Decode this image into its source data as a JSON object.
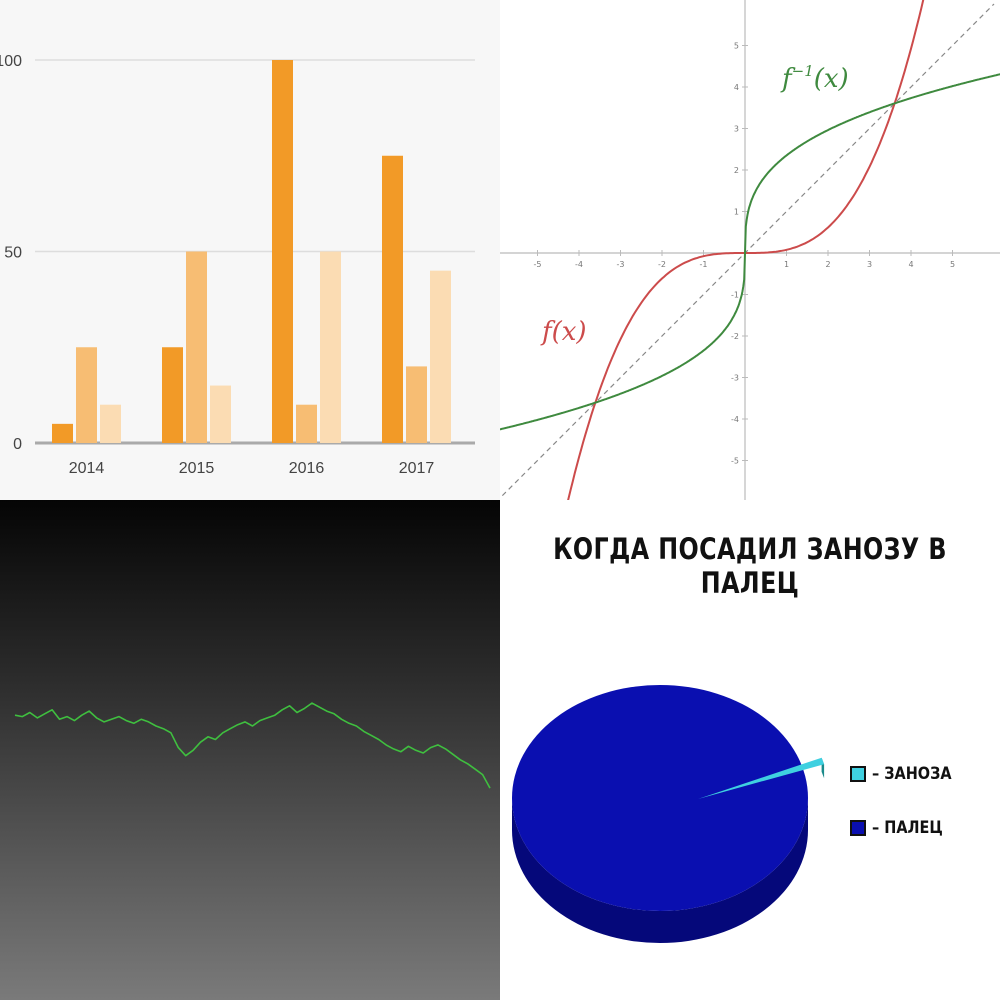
{
  "chart_data": [
    {
      "type": "bar",
      "title": "",
      "xlabel": "",
      "ylabel": "",
      "categories": [
        "2014",
        "2015",
        "2016",
        "2017"
      ],
      "series": [
        {
          "values": [
            5,
            25,
            100,
            75
          ],
          "color": "#f29a27"
        },
        {
          "values": [
            25,
            50,
            10,
            20
          ],
          "color": "#f7bd73"
        },
        {
          "values": [
            10,
            15,
            50,
            45
          ],
          "color": "#fbdcb3"
        }
      ],
      "yticks": [
        "0",
        "50",
        "100"
      ],
      "ylim": [
        0,
        100
      ],
      "grid": true
    },
    {
      "type": "line",
      "title": "",
      "xlim": [
        -6,
        6
      ],
      "ylim": [
        -6,
        6
      ],
      "xticks": [
        -5,
        -4,
        -3,
        -2,
        -1,
        1,
        2,
        3,
        4,
        5
      ],
      "yticks": [
        -5,
        -4,
        -3,
        -2,
        -1,
        1,
        2,
        3,
        4,
        5
      ],
      "grid": false,
      "series": [
        {
          "name": "f(x)",
          "function": "x^3/13",
          "color": "#cc4b4b"
        },
        {
          "name": "f^{-1}(x)",
          "function": "cbrt(13x)",
          "color": "#3f8a3f"
        },
        {
          "function": "y = x",
          "style": "dashed",
          "color": "#888888"
        }
      ],
      "labels": {
        "f": "f(x)",
        "finv_base": "f",
        "finv_sup": "−1",
        "finv_arg": "(x)"
      }
    },
    {
      "type": "line",
      "title": "",
      "color": "#3fbf3f",
      "series": [
        {
          "values": [
            48,
            47,
            50,
            46,
            49,
            52,
            45,
            47,
            44,
            48,
            51,
            46,
            43,
            45,
            47,
            44,
            42,
            45,
            43,
            40,
            38,
            35,
            24,
            18,
            22,
            28,
            32,
            30,
            35,
            38,
            41,
            43,
            40,
            44,
            46,
            48,
            52,
            55,
            50,
            53,
            57,
            54,
            51,
            49,
            45,
            42,
            40,
            36,
            33,
            30,
            26,
            23,
            21,
            25,
            22,
            20,
            24,
            26,
            23,
            19,
            15,
            12,
            8,
            4,
            -6
          ]
        }
      ]
    },
    {
      "type": "pie",
      "title": "КОГДА ПОСАДИЛ ЗАНОЗУ В ПАЛЕЦ",
      "slices": [
        {
          "label": "– ЗАНОЗА",
          "value": 1,
          "color": "#3fd0e0"
        },
        {
          "label": "– ПАЛЕЦ",
          "value": 99,
          "color": "#0a0fb0"
        }
      ]
    }
  ]
}
